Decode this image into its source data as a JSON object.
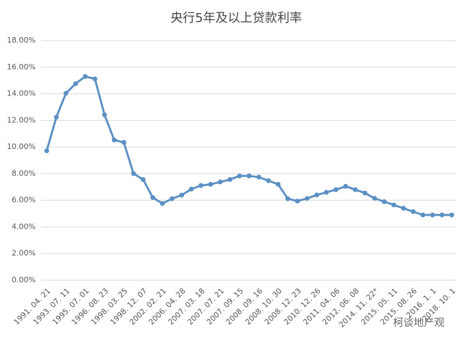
{
  "chart_data": {
    "type": "line",
    "title": "央行5年及以上贷款利率",
    "categories": [
      "1991. 04. 21",
      null,
      "1993. 07. 11",
      null,
      "1995. 07. 01",
      null,
      "1996. 08. 23",
      null,
      "1998. 03. 25",
      null,
      "1998. 12. 07",
      null,
      "2002. 02. 21",
      null,
      "2006. 04. 28",
      null,
      "2007. 03. 18",
      null,
      "2007. 07. 21",
      null,
      "2007. 09. 15",
      null,
      "2008. 09. 16",
      null,
      "2008. 10. 30",
      null,
      "2008. 12. 23",
      null,
      "2010. 12. 26",
      null,
      "2011. 04. 06",
      null,
      "2012. 06. 08",
      null,
      "2014. 11. 22*",
      null,
      "2015. 05. 11",
      null,
      "2015. 08. 26",
      null,
      "2016. 1. 1",
      null,
      "2018. 10. 1"
    ],
    "values": [
      9.72,
      12.24,
      14.04,
      14.76,
      15.3,
      15.12,
      12.42,
      10.53,
      10.35,
      8.01,
      7.56,
      6.21,
      5.76,
      6.12,
      6.39,
      6.84,
      7.11,
      7.2,
      7.38,
      7.56,
      7.83,
      7.83,
      7.74,
      7.47,
      7.2,
      6.12,
      5.94,
      6.14,
      6.4,
      6.6,
      6.8,
      7.05,
      6.8,
      6.55,
      6.15,
      5.9,
      5.65,
      5.4,
      5.15,
      4.9,
      4.9,
      4.9,
      4.9
    ],
    "color": "#5b90c4",
    "ylim": [
      0,
      18
    ],
    "yticks": [
      {
        "value": 0,
        "label": "0.00%"
      },
      {
        "value": 2,
        "label": "2.00%"
      },
      {
        "value": 4,
        "label": "4.00%"
      },
      {
        "value": 6,
        "label": "6.00%"
      },
      {
        "value": 8,
        "label": "8.00%"
      },
      {
        "value": 10,
        "label": "10.00%"
      },
      {
        "value": 12,
        "label": "12.00%"
      },
      {
        "value": 14,
        "label": "14.00%"
      },
      {
        "value": 16,
        "label": "16.00%"
      },
      {
        "value": 18,
        "label": "18.00%"
      }
    ],
    "grid": true,
    "watermark": "柯谈地产观"
  }
}
